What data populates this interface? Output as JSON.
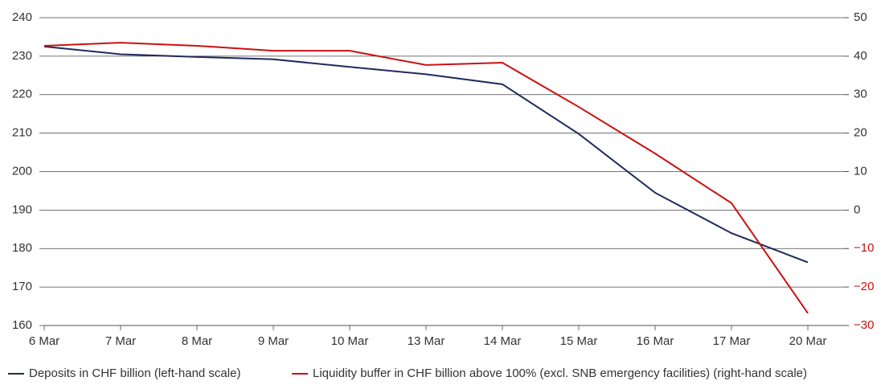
{
  "chart_data": {
    "type": "line",
    "categories": [
      "6 Mar",
      "7 Mar",
      "8 Mar",
      "9 Mar",
      "10 Mar",
      "13 Mar",
      "14 Mar",
      "15 Mar",
      "16 Mar",
      "17 Mar",
      "20 Mar"
    ],
    "series": [
      {
        "name": "Deposits in CHF billion (left-hand scale)",
        "color": "#1f2a5c",
        "values": [
          232.5,
          230.5,
          229.8,
          229.2,
          227.2,
          225.3,
          222.7,
          209.8,
          194.5,
          184.0,
          176.4
        ]
      },
      {
        "name": "Liquidity buffer in CHF billion above 100% (excl. SNB emergency facilities) (right-hand scale)",
        "color": "#cc1010",
        "axis": "y2",
        "values": [
          42.7,
          43.5,
          42.7,
          41.4,
          41.4,
          37.7,
          38.3,
          26.8,
          14.7,
          1.8,
          -26.8
        ]
      }
    ],
    "ylim": [
      160,
      240
    ],
    "yticks": [
      160,
      170,
      180,
      190,
      200,
      210,
      220,
      230,
      240
    ],
    "y2lim": [
      -30,
      50
    ],
    "y2ticks": [
      {
        "value": -30,
        "label": "−30"
      },
      {
        "value": -20,
        "label": "−20"
      },
      {
        "value": -10,
        "label": "−10"
      },
      0,
      10,
      20,
      30,
      40,
      50
    ],
    "y2_negative_label_color": "#cc1010",
    "grid": true
  }
}
